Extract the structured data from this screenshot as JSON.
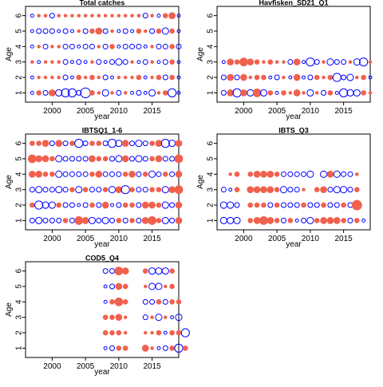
{
  "chart_data": [
    {
      "type": "scatter",
      "title": "Total catches",
      "xlabel": "year",
      "ylabel": "Age",
      "xlim": [
        1996,
        2019
      ],
      "ylim": [
        0.4,
        6.6
      ],
      "xticks": [
        2000,
        2005,
        2010,
        2015
      ],
      "yticks": [
        1,
        2,
        3,
        4,
        5,
        6
      ],
      "encoding": "bubble size = |residual|; red filled = positive, blue open = negative",
      "colors": {
        "positive": "#f0614d",
        "negative": "#0000ff"
      },
      "rows": [
        {
          "age": 1,
          "r": [
            -1,
            2,
            -2,
            3,
            -3,
            -4,
            -4,
            -2,
            -5,
            2,
            1,
            -3,
            1,
            -2,
            1,
            -1,
            -2,
            -1,
            -3,
            1,
            2,
            -4,
            -1
          ]
        },
        {
          "age": 2,
          "r": [
            -1,
            1,
            1,
            1,
            1,
            -2,
            -1,
            2,
            1,
            2,
            1,
            -2,
            -1,
            1,
            1,
            1,
            2,
            -1,
            1,
            2,
            -2,
            2,
            -1
          ]
        },
        {
          "age": 3,
          "r": [
            1,
            -1,
            1,
            1,
            1,
            -2,
            -1,
            -2,
            -1,
            1,
            -2,
            -1,
            -2,
            -3,
            -2,
            1,
            -1,
            -2,
            1,
            -1,
            -2,
            2,
            -1
          ]
        },
        {
          "age": 4,
          "r": [
            -1,
            1,
            -2,
            1,
            1,
            -2,
            -2,
            -1,
            -2,
            -2,
            1,
            -2,
            2,
            -1,
            -2,
            -2,
            -2,
            -1,
            1,
            -2,
            -2,
            2,
            -2
          ]
        },
        {
          "age": 5,
          "r": [
            -1,
            -2,
            -2,
            -2,
            -1,
            -2,
            -1,
            1,
            -2,
            2,
            3,
            -2,
            1,
            -1,
            -2,
            -1,
            2,
            1,
            -2,
            2,
            -3,
            2,
            -1
          ]
        },
        {
          "age": 6,
          "r": [
            -1,
            1,
            1,
            -2,
            1,
            1,
            1,
            1,
            1,
            1,
            1,
            1,
            1,
            1,
            1,
            1,
            1,
            -2,
            1,
            -1,
            2,
            3,
            -1
          ]
        }
      ]
    },
    {
      "type": "scatter",
      "title": "Havfisken_SD21_Q1",
      "xlabel": "year",
      "ylabel": "Age",
      "xlim": [
        1996,
        2019
      ],
      "ylim": [
        0.4,
        6.6
      ],
      "xticks": [
        2000,
        2005,
        2010,
        2015
      ],
      "yticks": [
        1,
        2,
        3,
        4,
        5,
        6
      ],
      "encoding": "bubble size = |residual|; red filled = positive, blue open = negative",
      "colors": {
        "positive": "#f0614d",
        "negative": "#0000ff"
      },
      "rows": [
        {
          "age": 1,
          "r": [
            -2,
            3,
            -4,
            3,
            -3,
            4,
            -3,
            2,
            -1,
            2,
            1,
            3,
            1,
            -3,
            1,
            -2,
            2,
            -1,
            -4,
            -3,
            -3,
            2,
            1
          ]
        },
        {
          "age": 2,
          "r": [
            -2,
            3,
            -2,
            3,
            1,
            2,
            2,
            -1,
            -2,
            1,
            -1,
            3,
            -1,
            -2,
            2,
            1,
            2,
            -4,
            -2,
            -3,
            1,
            2,
            -1
          ]
        },
        {
          "age": 3,
          "r": [
            -1,
            3,
            2,
            4,
            3,
            2,
            1,
            2,
            1,
            1,
            -2,
            3,
            -1,
            -4,
            -2,
            1,
            -3,
            -2,
            -2,
            1,
            -3,
            -4,
            1
          ]
        }
      ]
    },
    {
      "type": "scatter",
      "title": "IBTSQ1_1-6",
      "xlabel": "year",
      "ylabel": "Age",
      "xlim": [
        1996,
        2019
      ],
      "ylim": [
        0.4,
        6.6
      ],
      "xticks": [
        2000,
        2005,
        2010,
        2015
      ],
      "yticks": [
        1,
        2,
        3,
        4,
        5,
        6
      ],
      "encoding": "bubble size = |residual|; red filled = positive, blue open = negative",
      "colors": {
        "positive": "#f0614d",
        "negative": "#0000ff"
      },
      "rows": [
        {
          "age": 1,
          "r": [
            -2,
            -3,
            -2,
            -2,
            -2,
            2,
            -2,
            4,
            3,
            -3,
            -2,
            -3,
            -2,
            2,
            -2,
            2,
            -2,
            3,
            4,
            2,
            -3,
            -2,
            3
          ]
        },
        {
          "age": 2,
          "r": [
            2,
            -4,
            -3,
            -3,
            2,
            -2,
            -2,
            -1,
            -2,
            2,
            -2,
            3,
            -1,
            -2,
            2,
            2,
            -2,
            3,
            3,
            2,
            -3,
            -2,
            3
          ]
        },
        {
          "age": 3,
          "r": [
            -2,
            -3,
            -2,
            -2,
            -3,
            -2,
            2,
            -3,
            2,
            -2,
            -2,
            2,
            -3,
            3,
            -4,
            2,
            -2,
            -2,
            2,
            2,
            -3,
            3,
            4
          ]
        },
        {
          "age": 4,
          "r": [
            3,
            3,
            2,
            2,
            -3,
            -2,
            -2,
            -2,
            -2,
            2,
            3,
            -2,
            -2,
            -2,
            2,
            3,
            -2,
            2,
            -3,
            -2,
            2,
            -2,
            3
          ]
        },
        {
          "age": 5,
          "r": [
            4,
            3,
            3,
            2,
            -3,
            -2,
            -2,
            -2,
            -2,
            3,
            2,
            2,
            -2,
            -3,
            3,
            -2,
            -3,
            -2,
            2,
            3,
            -2,
            -2,
            4
          ]
        },
        {
          "age": 6,
          "r": [
            2,
            2,
            3,
            -2,
            3,
            -2,
            2,
            -4,
            -2,
            2,
            2,
            -2,
            -4,
            -3,
            3,
            -2,
            -3,
            -2,
            2,
            3,
            -4,
            -3,
            3
          ]
        }
      ]
    },
    {
      "type": "scatter",
      "title": "IBTS_Q3",
      "xlabel": "year",
      "ylabel": "Age",
      "xlim": [
        1996,
        2019
      ],
      "ylim": [
        0.4,
        6.6
      ],
      "xticks": [
        2000,
        2005,
        2010,
        2015
      ],
      "yticks": [
        1,
        2,
        3,
        4,
        5,
        6
      ],
      "encoding": "bubble size = |residual|; red filled = positive, blue open = negative",
      "colors": {
        "positive": "#f0614d",
        "negative": "#0000ff"
      },
      "first_year": 1997,
      "rows": [
        {
          "age": 1,
          "r": [
            -3,
            -3,
            -3,
            0,
            2,
            3,
            4,
            3,
            2,
            -2,
            2,
            -1,
            -2,
            -3,
            2,
            3,
            3,
            3,
            2,
            -2,
            2,
            -1
          ]
        },
        {
          "age": 2,
          "r": [
            -3,
            -3,
            -2,
            0,
            2,
            2,
            2,
            -2,
            2,
            -2,
            -2,
            -2,
            2,
            -2,
            -2,
            2,
            -2,
            -2,
            2,
            -2,
            5,
            0
          ]
        },
        {
          "age": 3,
          "r": [
            -2,
            -1,
            2,
            0,
            3,
            3,
            3,
            3,
            2,
            -3,
            -2,
            -2,
            1,
            0,
            2,
            3,
            -2,
            -3,
            -3,
            -2,
            2,
            0
          ]
        },
        {
          "age": 4,
          "r": [
            0,
            1,
            2,
            0,
            2,
            3,
            3,
            3,
            2,
            -2,
            -2,
            -2,
            -2,
            -3,
            0,
            -3,
            3,
            -3,
            -2,
            -2,
            1,
            0
          ]
        }
      ]
    },
    {
      "type": "scatter",
      "title": "COD5_Q4",
      "xlabel": "year",
      "ylabel": "Age",
      "xlim": [
        1996,
        2019
      ],
      "ylim": [
        0.4,
        6.6
      ],
      "xticks": [
        2000,
        2005,
        2010,
        2015
      ],
      "yticks": [
        1,
        2,
        3,
        4,
        5,
        6
      ],
      "encoding": "bubble size = |residual|; red filled = positive, blue open = negative",
      "colors": {
        "positive": "#f0614d",
        "negative": "#0000ff"
      },
      "first_year": 2008,
      "rows": [
        {
          "age": 1,
          "r": [
            -1,
            -2,
            2,
            2,
            0,
            0,
            3,
            1,
            -1,
            -2,
            2,
            -4,
            2
          ]
        },
        {
          "age": 2,
          "r": [
            2,
            2,
            2,
            1,
            0,
            0,
            1,
            1,
            2,
            -1,
            2,
            2,
            -4
          ]
        },
        {
          "age": 3,
          "r": [
            2,
            2,
            3,
            1,
            0,
            0,
            -2,
            1,
            -3,
            1,
            -1,
            -3
          ]
        },
        {
          "age": 4,
          "r": [
            -1,
            2,
            4,
            2,
            0,
            0,
            -2,
            -2,
            2,
            -2,
            2,
            2
          ]
        },
        {
          "age": 5,
          "r": [
            -1,
            -2,
            3,
            2,
            0,
            0,
            1,
            -3,
            -3,
            1,
            2
          ]
        },
        {
          "age": 6,
          "r": [
            -2,
            -2,
            4,
            3,
            0,
            0,
            2,
            -3,
            -3,
            -3,
            2
          ]
        }
      ]
    }
  ]
}
